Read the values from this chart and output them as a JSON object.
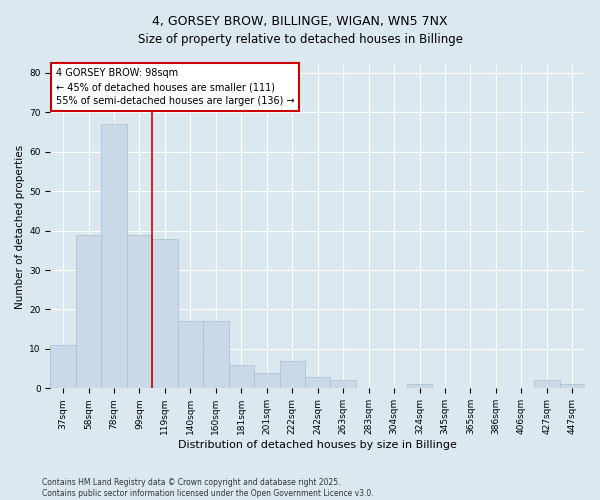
{
  "title": "4, GORSEY BROW, BILLINGE, WIGAN, WN5 7NX",
  "subtitle": "Size of property relative to detached houses in Billinge",
  "xlabel": "Distribution of detached houses by size in Billinge",
  "ylabel": "Number of detached properties",
  "categories": [
    "37sqm",
    "58sqm",
    "78sqm",
    "99sqm",
    "119sqm",
    "140sqm",
    "160sqm",
    "181sqm",
    "201sqm",
    "222sqm",
    "242sqm",
    "263sqm",
    "283sqm",
    "304sqm",
    "324sqm",
    "345sqm",
    "365sqm",
    "386sqm",
    "406sqm",
    "427sqm",
    "447sqm"
  ],
  "values": [
    11,
    39,
    67,
    39,
    38,
    17,
    17,
    6,
    4,
    7,
    3,
    2,
    0,
    0,
    1,
    0,
    0,
    0,
    0,
    2,
    1
  ],
  "bar_color": "#c9d9e8",
  "bar_edge_color": "#a8bfcf",
  "redline_index": 3,
  "annotation_text": "4 GORSEY BROW: 98sqm\n← 45% of detached houses are smaller (111)\n55% of semi-detached houses are larger (136) →",
  "annotation_box_color": "#ffffff",
  "annotation_box_edge_color": "#cc0000",
  "redline_color": "#cc0000",
  "background_color": "#dce8f0",
  "plot_background_color": "#dce8f0",
  "grid_color": "#ffffff",
  "footer_text": "Contains HM Land Registry data © Crown copyright and database right 2025.\nContains public sector information licensed under the Open Government Licence v3.0.",
  "ylim": [
    0,
    82
  ],
  "yticks": [
    0,
    10,
    20,
    30,
    40,
    50,
    60,
    70,
    80
  ],
  "title_fontsize": 9,
  "subtitle_fontsize": 8.5,
  "ylabel_fontsize": 7.5,
  "xlabel_fontsize": 8,
  "tick_fontsize": 6.5,
  "annotation_fontsize": 7,
  "footer_fontsize": 5.5
}
